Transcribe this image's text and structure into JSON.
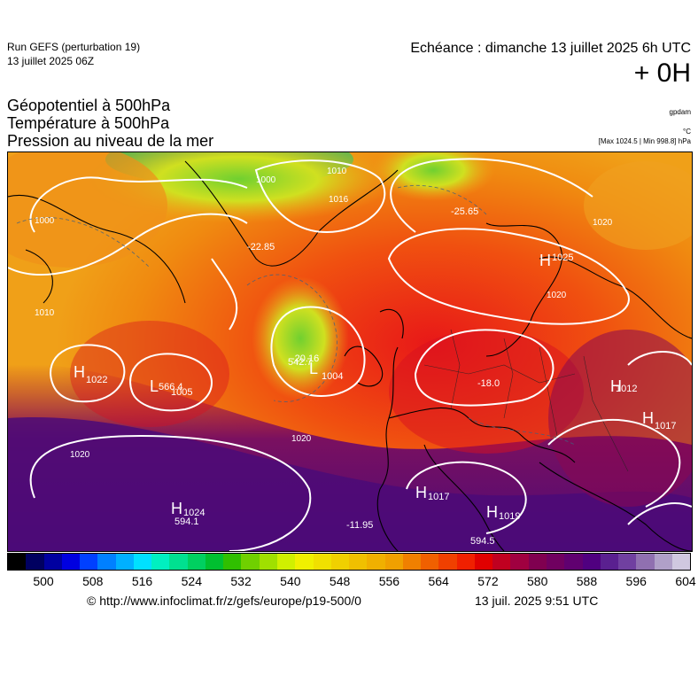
{
  "header": {
    "run_title": "Run GEFS (perturbation 19)",
    "run_date": "13 juillet 2025 06Z",
    "echeance": "Echéance : dimanche 13 juillet 2025 6h UTC",
    "lead_time": "+ 0H"
  },
  "variables": [
    "Géopotentiel à 500hPa",
    "Température à 500hPa",
    "Pression au niveau de la mer"
  ],
  "units": {
    "geopotential": "gpdam",
    "temperature": "°C",
    "max_min": "[Max 1024.5 | Min 998.8] hPa"
  },
  "map": {
    "pressure_centers": [
      {
        "type": "H",
        "value": "1022"
      },
      {
        "type": "H",
        "value": "1024"
      },
      {
        "type": "H",
        "value": "1025"
      },
      {
        "type": "H",
        "value": "1017"
      },
      {
        "type": "H",
        "value": "1019"
      },
      {
        "type": "H",
        "value": "1012"
      },
      {
        "type": "H",
        "value": "1017"
      },
      {
        "type": "L",
        "value": "1004"
      },
      {
        "type": "L",
        "value": "1005"
      }
    ],
    "isobar_labels": [
      "1000",
      "1010",
      "1020",
      "1016"
    ],
    "temperature_labels": [
      "-22.85",
      "-25.65",
      "-11.95",
      "-18.0",
      "-20.16"
    ],
    "geopotential_labels": [
      "594.1",
      "594.5",
      "566.4",
      "542.7"
    ],
    "colors": {
      "ocean_deep": "#4b0a78",
      "warm": "#e01818",
      "mid": "#f07010",
      "cool": "#f0c020",
      "cold": "#30c030"
    }
  },
  "colorbar": {
    "ticks": [
      "500",
      "508",
      "516",
      "524",
      "532",
      "540",
      "548",
      "556",
      "564",
      "572",
      "580",
      "588",
      "596",
      "604"
    ],
    "colors": [
      "#000000",
      "#000060",
      "#0000a0",
      "#0000e0",
      "#0040ff",
      "#0080ff",
      "#00b0ff",
      "#00e0ff",
      "#00f0c0",
      "#00e090",
      "#00d060",
      "#00c030",
      "#30c000",
      "#70d000",
      "#a0e000",
      "#d0f000",
      "#f0f000",
      "#f0e000",
      "#f0d000",
      "#f0c000",
      "#f0b000",
      "#f0a000",
      "#f08000",
      "#f06000",
      "#f04000",
      "#f02000",
      "#e00000",
      "#c00020",
      "#a00040",
      "#800050",
      "#700060",
      "#600070",
      "#500080",
      "#5a2090",
      "#7040a0",
      "#9070b0",
      "#b0a0c8",
      "#d0c8e0"
    ]
  },
  "footer": {
    "credit": "© http://www.infoclimat.fr/z/gefs/europe/p19-500/0",
    "generated": "13 juil. 2025  9:51 UTC"
  }
}
